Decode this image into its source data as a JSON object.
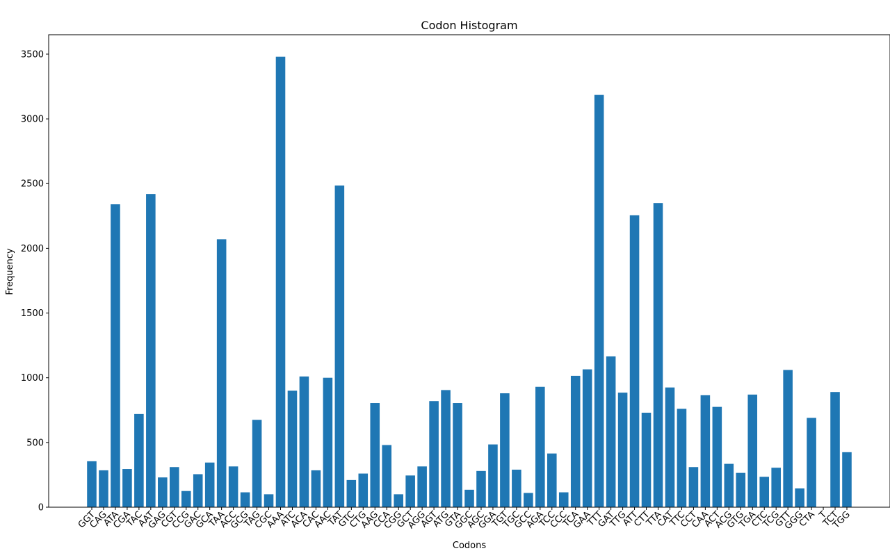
{
  "chart_data": {
    "type": "bar",
    "title": "Codon Histogram",
    "xlabel": "Codons",
    "ylabel": "Frequency",
    "ylim": [
      0,
      3650
    ],
    "yticks": [
      0,
      500,
      1000,
      1500,
      2000,
      2500,
      3000,
      3500
    ],
    "bar_color": "#1f77b4",
    "categories": [
      "GGT",
      "CAG",
      "ATA",
      "CGA",
      "TAC",
      "AAT",
      "GAG",
      "CGT",
      "CCG",
      "GAC",
      "GCA",
      "TAA",
      "ACC",
      "GCG",
      "TAG",
      "CGC",
      "AAA",
      "ATC",
      "ACA",
      "CAC",
      "AAC",
      "TAT",
      "GTC",
      "CTG",
      "AAG",
      "CCA",
      "CGG",
      "GCT",
      "AGG",
      "AGT",
      "ATG",
      "GTA",
      "GGC",
      "AGC",
      "GGA",
      "TGT",
      "TGC",
      "GCC",
      "AGA",
      "TCC",
      "CCC",
      "TCA",
      "GAA",
      "TTT",
      "GAT",
      "TTG",
      "ATT",
      "CTT",
      "TTA",
      "CAT",
      "TTC",
      "CCT",
      "CAA",
      "ACT",
      "ACG",
      "GTG",
      "TGA",
      "CTC",
      "TCG",
      "GTT",
      "GGG",
      "CTA",
      "T",
      "TCT",
      "TGG"
    ],
    "values": [
      355,
      285,
      2340,
      295,
      720,
      2420,
      230,
      310,
      125,
      255,
      345,
      2070,
      315,
      115,
      675,
      100,
      3480,
      900,
      1010,
      285,
      1000,
      2485,
      210,
      260,
      805,
      480,
      100,
      245,
      315,
      820,
      905,
      805,
      135,
      280,
      485,
      880,
      290,
      110,
      930,
      415,
      115,
      1015,
      1065,
      3185,
      1165,
      885,
      2255,
      730,
      2350,
      925,
      760,
      310,
      865,
      775,
      335,
      265,
      870,
      235,
      305,
      1060,
      145,
      690,
      0,
      890,
      425
    ]
  }
}
